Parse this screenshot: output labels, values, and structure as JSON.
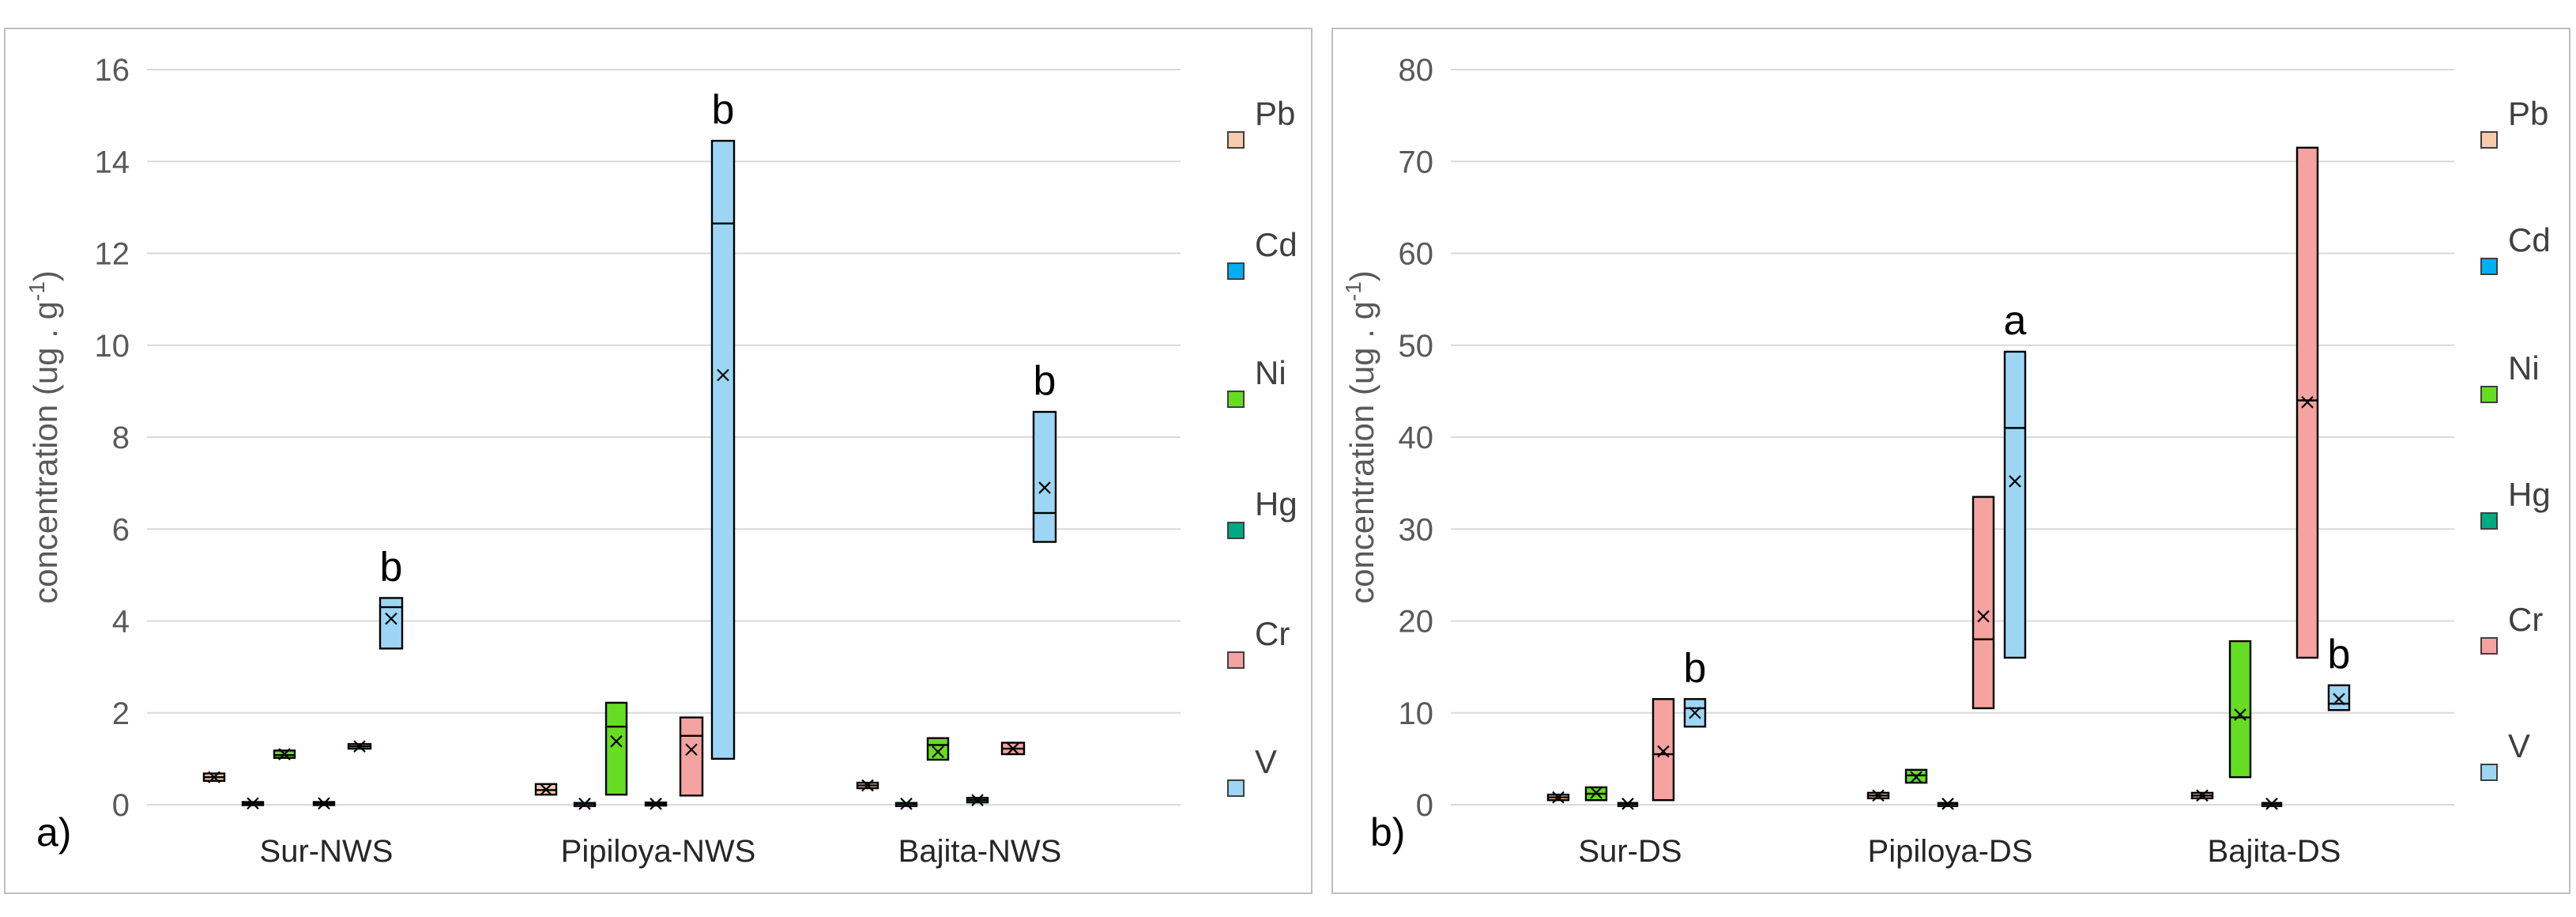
{
  "chart_data": [
    {
      "type": "box",
      "panel_label": "a)",
      "ylabel": "concentration (ug . g",
      "ylabel_sup": "-1",
      "ylabel_end": ")",
      "ylim": [
        0,
        16
      ],
      "yticks": [
        "0",
        "2",
        "4",
        "6",
        "8",
        "10",
        "12",
        "14",
        "16"
      ],
      "categories": [
        "Sur-NWS",
        "Pipiloya-NWS",
        "Bajita-NWS"
      ],
      "legend": [
        "Pb",
        "Cd",
        "Ni",
        "Hg",
        "Cr",
        "V"
      ],
      "colors": {
        "Pb": "#f8cbad",
        "Cd": "#00b0f0",
        "Ni": "#66dd22",
        "Hg": "#00a884",
        "Cr": "#f4a3a0",
        "V": "#9dd6f4"
      },
      "series": [
        {
          "category": "Sur-NWS",
          "element": "Pb",
          "q1": 0.52,
          "median": 0.6,
          "q3": 0.68,
          "mean": 0.6
        },
        {
          "category": "Sur-NWS",
          "element": "Cd",
          "q1": 0.0,
          "median": 0.03,
          "q3": 0.06,
          "mean": 0.03
        },
        {
          "category": "Sur-NWS",
          "element": "Ni",
          "q1": 1.02,
          "median": 1.08,
          "q3": 1.18,
          "mean": 1.1
        },
        {
          "category": "Sur-NWS",
          "element": "Hg",
          "q1": 0.0,
          "median": 0.03,
          "q3": 0.06,
          "mean": 0.03
        },
        {
          "category": "Sur-NWS",
          "element": "Cr",
          "q1": 1.22,
          "median": 1.27,
          "q3": 1.32,
          "mean": 1.27
        },
        {
          "category": "Sur-NWS",
          "element": "V",
          "q1": 3.4,
          "median": 4.3,
          "q3": 4.5,
          "mean": 4.05,
          "sig": "b"
        },
        {
          "category": "Pipiloya-NWS",
          "element": "Pb",
          "q1": 0.22,
          "median": 0.32,
          "q3": 0.45,
          "mean": 0.33
        },
        {
          "category": "Pipiloya-NWS",
          "element": "Cd",
          "q1": 0.0,
          "median": 0.02,
          "q3": 0.04,
          "mean": 0.02
        },
        {
          "category": "Pipiloya-NWS",
          "element": "Ni",
          "q1": 0.22,
          "median": 1.7,
          "q3": 2.22,
          "mean": 1.38
        },
        {
          "category": "Pipiloya-NWS",
          "element": "Hg",
          "q1": 0.0,
          "median": 0.02,
          "q3": 0.05,
          "mean": 0.02
        },
        {
          "category": "Pipiloya-NWS",
          "element": "Cr",
          "q1": 0.2,
          "median": 1.5,
          "q3": 1.9,
          "mean": 1.2
        },
        {
          "category": "Pipiloya-NWS",
          "element": "V",
          "q1": 1.0,
          "median": 12.65,
          "q3": 14.45,
          "mean": 9.35,
          "sig": "b"
        },
        {
          "category": "Bajita-NWS",
          "element": "Pb",
          "q1": 0.36,
          "median": 0.42,
          "q3": 0.48,
          "mean": 0.42
        },
        {
          "category": "Bajita-NWS",
          "element": "Cd",
          "q1": 0.0,
          "median": 0.02,
          "q3": 0.04,
          "mean": 0.02
        },
        {
          "category": "Bajita-NWS",
          "element": "Ni",
          "q1": 0.98,
          "median": 1.3,
          "q3": 1.45,
          "mean": 1.15
        },
        {
          "category": "Bajita-NWS",
          "element": "Hg",
          "q1": 0.05,
          "median": 0.1,
          "q3": 0.15,
          "mean": 0.1
        },
        {
          "category": "Bajita-NWS",
          "element": "Cr",
          "q1": 1.1,
          "median": 1.22,
          "q3": 1.35,
          "mean": 1.22
        },
        {
          "category": "Bajita-NWS",
          "element": "V",
          "q1": 5.72,
          "median": 6.35,
          "q3": 8.55,
          "mean": 6.9,
          "sig": "b"
        }
      ]
    },
    {
      "type": "box",
      "panel_label": "b)",
      "ylabel": "concentration (ug . g",
      "ylabel_sup": "-1",
      "ylabel_end": ")",
      "ylim": [
        0,
        80
      ],
      "yticks": [
        "0",
        "10",
        "20",
        "30",
        "40",
        "50",
        "60",
        "70",
        "80"
      ],
      "categories": [
        "Sur-DS",
        "Pipiloya-DS",
        "Bajita-DS"
      ],
      "legend": [
        "Pb",
        "Cd",
        "Ni",
        "Hg",
        "Cr",
        "V"
      ],
      "colors": {
        "Pb": "#f8cbad",
        "Cd": "#00b0f0",
        "Ni": "#66dd22",
        "Hg": "#00a884",
        "Cr": "#f4a3a0",
        "V": "#9dd6f4"
      },
      "series": [
        {
          "category": "Sur-DS",
          "element": "Pb",
          "q1": 0.5,
          "median": 0.8,
          "q3": 1.1,
          "mean": 0.8
        },
        {
          "category": "Sur-DS",
          "element": "Ni",
          "q1": 0.5,
          "median": 1.2,
          "q3": 1.9,
          "mean": 1.3
        },
        {
          "category": "Sur-DS",
          "element": "Hg",
          "q1": 0.0,
          "median": 0.1,
          "q3": 0.2,
          "mean": 0.1
        },
        {
          "category": "Sur-DS",
          "element": "Cr",
          "q1": 0.5,
          "median": 5.5,
          "q3": 11.5,
          "mean": 5.8
        },
        {
          "category": "Sur-DS",
          "element": "V",
          "q1": 8.5,
          "median": 10.5,
          "q3": 11.5,
          "mean": 10.0,
          "sig": "b"
        },
        {
          "category": "Pipiloya-DS",
          "element": "Pb",
          "q1": 0.7,
          "median": 1.0,
          "q3": 1.3,
          "mean": 1.0
        },
        {
          "category": "Pipiloya-DS",
          "element": "Ni",
          "q1": 2.4,
          "median": 3.2,
          "q3": 3.8,
          "mean": 3.0
        },
        {
          "category": "Pipiloya-DS",
          "element": "Hg",
          "q1": 0.0,
          "median": 0.1,
          "q3": 0.2,
          "mean": 0.1
        },
        {
          "category": "Pipiloya-DS",
          "element": "Cr",
          "q1": 10.5,
          "median": 18.0,
          "q3": 33.5,
          "mean": 20.5
        },
        {
          "category": "Pipiloya-DS",
          "element": "V",
          "q1": 16.0,
          "median": 41.0,
          "q3": 49.3,
          "mean": 35.2,
          "sig": "a"
        },
        {
          "category": "Bajita-DS",
          "element": "Pb",
          "q1": 0.7,
          "median": 1.0,
          "q3": 1.3,
          "mean": 1.0
        },
        {
          "category": "Bajita-DS",
          "element": "Ni",
          "q1": 3.0,
          "median": 9.5,
          "q3": 17.8,
          "mean": 9.8
        },
        {
          "category": "Bajita-DS",
          "element": "Hg",
          "q1": 0.0,
          "median": 0.1,
          "q3": 0.2,
          "mean": 0.1
        },
        {
          "category": "Bajita-DS",
          "element": "Cr",
          "q1": 16.0,
          "median": 44.0,
          "q3": 71.5,
          "mean": 43.8
        },
        {
          "category": "Bajita-DS",
          "element": "V",
          "q1": 10.3,
          "median": 11.0,
          "q3": 13.0,
          "mean": 11.5,
          "sig": "b"
        }
      ]
    }
  ]
}
